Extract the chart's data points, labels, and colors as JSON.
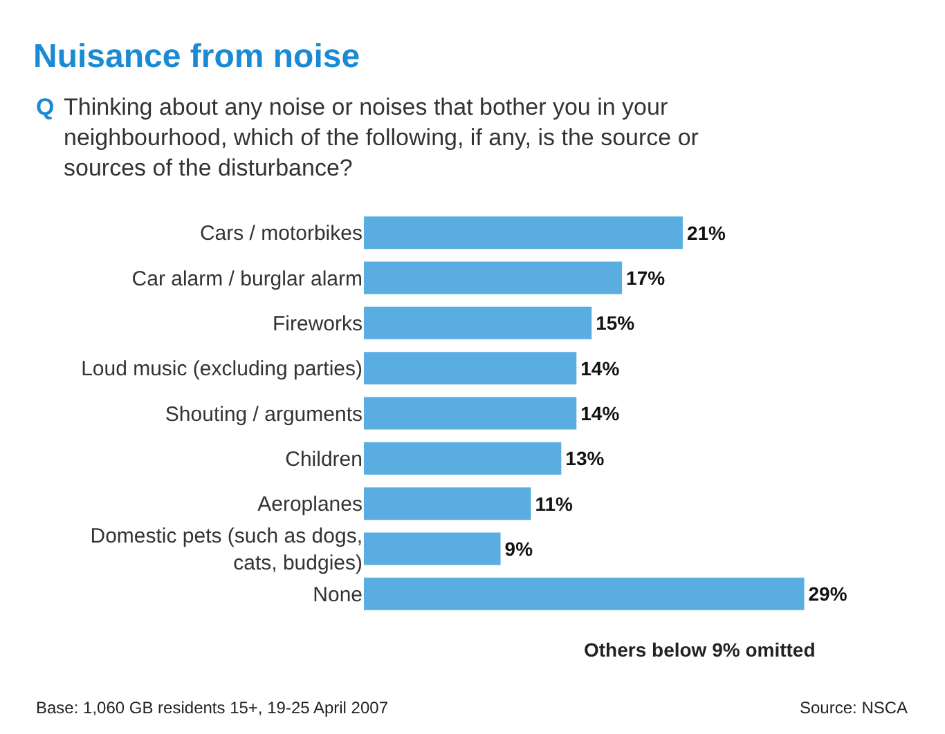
{
  "chart_data": {
    "type": "bar",
    "orientation": "horizontal",
    "title": "Nuisance from noise",
    "subtitle": "Q Thinking about any noise or noises that bother you in your neighbourhood, which of the following, if any, is the source or sources of the disturbance?",
    "categories": [
      "Cars / motorbikes",
      "Car alarm / burglar alarm",
      "Fireworks",
      "Loud music (excluding parties)",
      "Shouting / arguments",
      "Children",
      "Aeroplanes",
      "Domestic pets (such as dogs, cats, budgies)",
      "None"
    ],
    "values": [
      21,
      17,
      15,
      14,
      14,
      13,
      11,
      9,
      29
    ],
    "value_labels": [
      "21%",
      "17%",
      "15%",
      "14%",
      "14%",
      "13%",
      "11%",
      "9%",
      "29%"
    ],
    "color": "#5aade0",
    "annotations": [
      "Others below 9% omitted",
      "Base: 1,060 GB residents 15+, 19-25 April 2007",
      "Source: NSCA"
    ],
    "legend": false
  }
}
